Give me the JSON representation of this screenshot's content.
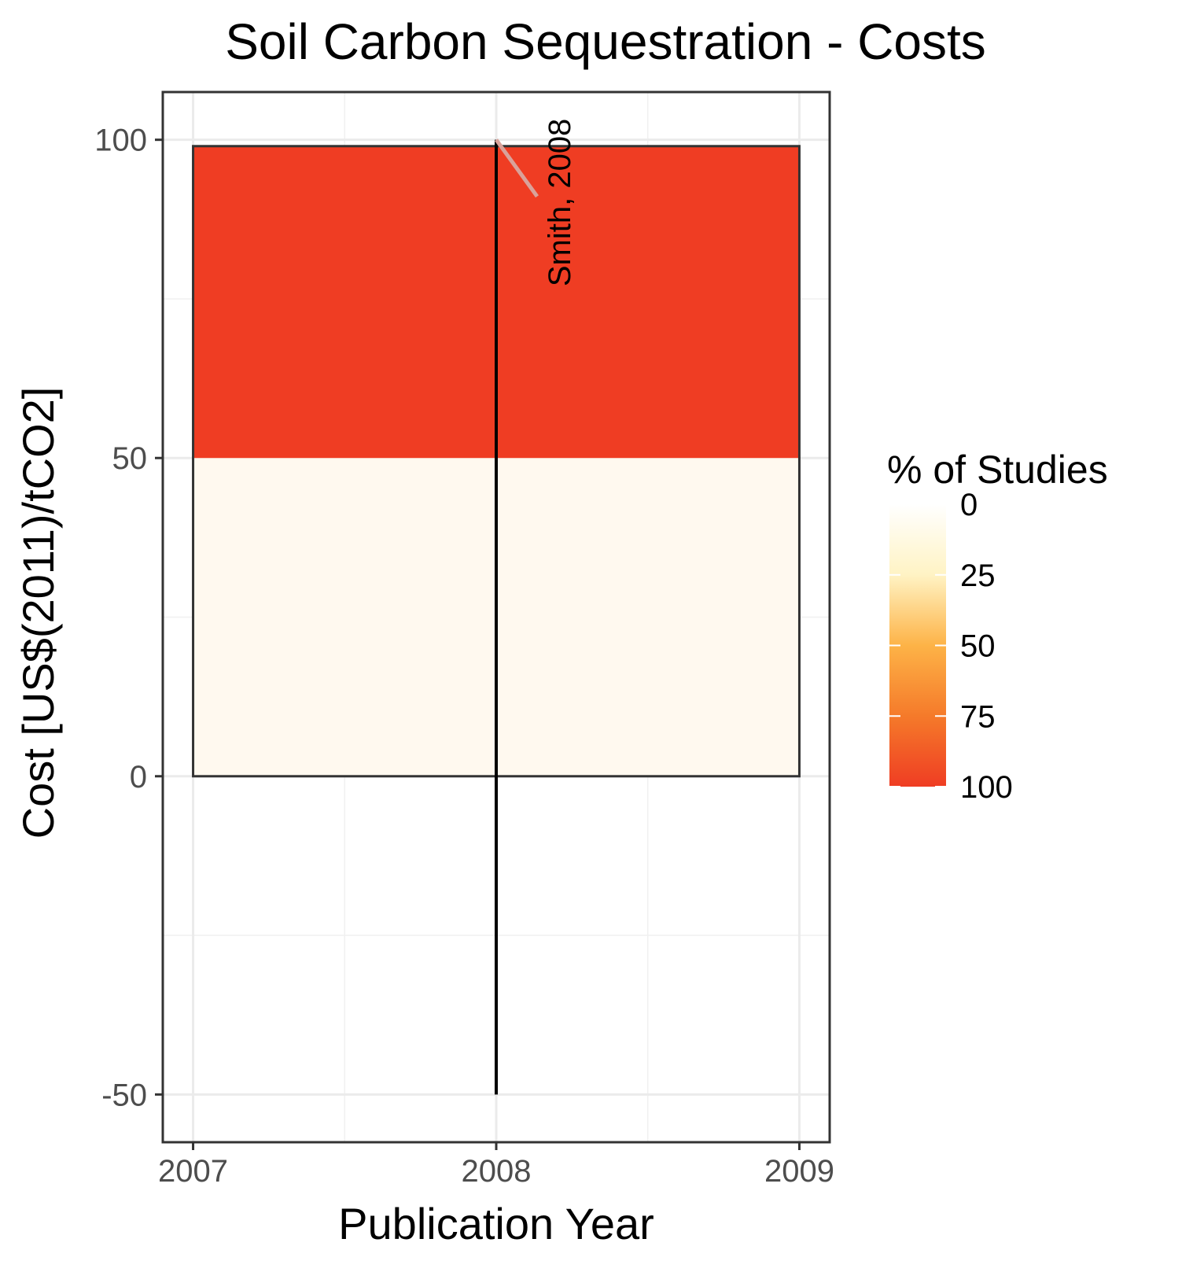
{
  "chart_data": {
    "type": "heatmap",
    "title": "Soil Carbon Sequestration - Costs",
    "xlabel": "Publication Year",
    "ylabel": "Cost [US$(2011)/tCO2]",
    "xlim": [
      2006.9,
      2009.1
    ],
    "ylim": [
      -57.5,
      107.5
    ],
    "x_ticks": [
      2007,
      2008,
      2009
    ],
    "x_tick_labels": [
      "2007",
      "2008",
      "2009"
    ],
    "y_ticks": [
      -50,
      0,
      50,
      100
    ],
    "y_tick_labels": [
      "-50",
      "0",
      "50",
      "100"
    ],
    "grid": true,
    "tiles": [
      {
        "x0": 2007,
        "x1": 2009,
        "y0": 0,
        "y1": 50,
        "percent": 0,
        "color": "#fff9ef"
      },
      {
        "x0": 2007,
        "x1": 2009,
        "y0": 50,
        "y1": 99,
        "percent": 100,
        "color": "#ef3d23"
      }
    ],
    "ranges": [
      {
        "x": 2008,
        "ymin": -50,
        "ymax": 100
      }
    ],
    "annotations": [
      {
        "text": "Smith, 2008",
        "x": 2008,
        "y": 100
      }
    ],
    "legend": {
      "title": "% of Studies",
      "placement": "right",
      "labels": [
        "0",
        "25",
        "50",
        "75",
        "100"
      ],
      "values": [
        0,
        25,
        50,
        75,
        100
      ],
      "colors": [
        "#ffffff",
        "#fff3c4",
        "#fdb347",
        "#f57a2a",
        "#ef3d23"
      ]
    }
  }
}
